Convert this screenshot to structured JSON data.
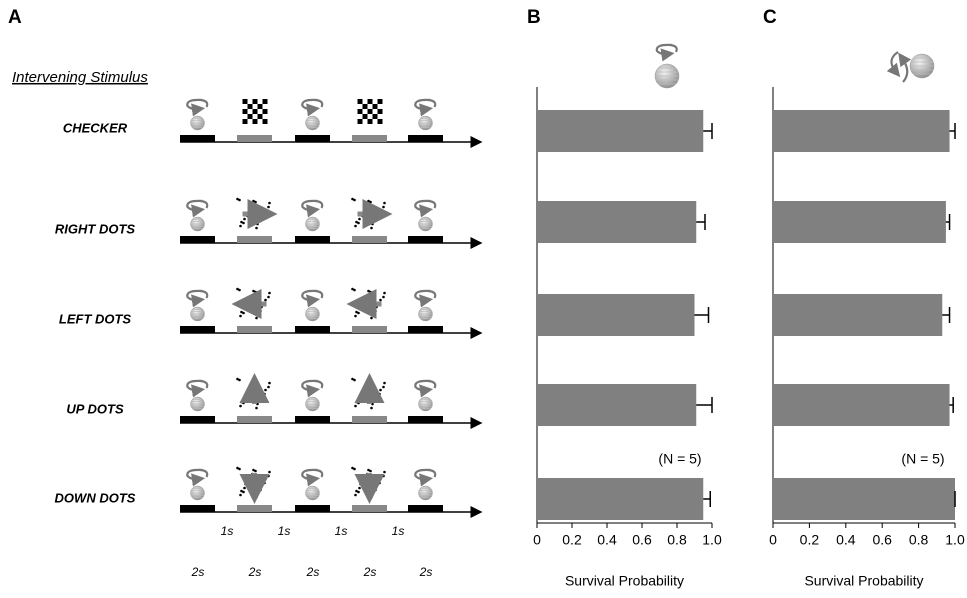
{
  "panel_labels": [
    "A",
    "B",
    "C"
  ],
  "diagram": {
    "title": "Intervening Stimulus",
    "rows": [
      "CHECKER",
      "RIGHT DOTS",
      "LEFT DOTS",
      "UP DOTS",
      "DOWN DOTS"
    ],
    "gap_labels": [
      "1s",
      "1s",
      "1s",
      "1s"
    ],
    "segment_labels": [
      "2s",
      "2s",
      "2s",
      "2s",
      "2s"
    ]
  },
  "chart_data": [
    {
      "type": "barh",
      "categories": [
        null,
        null,
        null,
        null,
        null
      ],
      "values": [
        0.95,
        0.91,
        0.9,
        0.91,
        0.95
      ],
      "errors": [
        0.05,
        0.05,
        0.08,
        0.09,
        0.04
      ],
      "color": "#808080",
      "xlabel": "Survival Probability",
      "annotation": "(N = 5)",
      "xlim": [
        0,
        1
      ],
      "xticks": [
        0,
        0.2,
        0.4,
        0.6,
        0.8,
        {
          "value": 1,
          "label": "1.0"
        }
      ]
    },
    {
      "type": "barh",
      "categories": [
        null,
        null,
        null,
        null,
        null
      ],
      "values": [
        0.97,
        0.95,
        0.93,
        0.97,
        1.0
      ],
      "errors": [
        0.03,
        0.02,
        0.04,
        0.02,
        0
      ],
      "color": "#808080",
      "xlabel": "Survival Probability",
      "annotation": "(N = 5)",
      "xlim": [
        0,
        1
      ],
      "xticks": [
        0,
        0.2,
        0.4,
        0.6,
        0.8,
        {
          "value": 1,
          "label": "1.0"
        }
      ]
    }
  ]
}
